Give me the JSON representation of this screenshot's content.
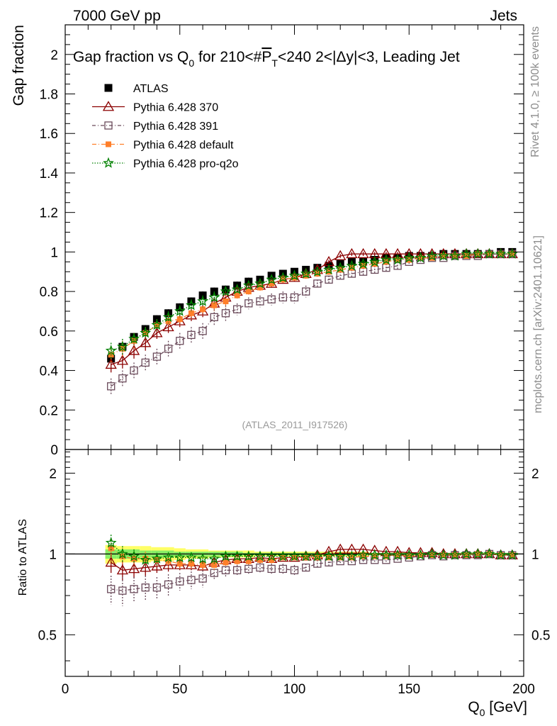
{
  "header": {
    "left": "7000 GeV pp",
    "right": "Jets"
  },
  "side": {
    "top": "Rivet 4.1.0, ≥ 100k events",
    "bottom": "mcplots.cern.ch [arXiv:2401.10621]"
  },
  "watermark": "(ATLAS_2011_I917526)",
  "colors": {
    "data": "#000000",
    "p370": "#8b0000",
    "p391": "#6a4a5a",
    "pdefault": "#ff7f2a",
    "pq2o": "#008000",
    "band_outer": "#ffff66",
    "band_inner": "#88ee66"
  },
  "chart_data": [
    {
      "type": "scatter",
      "title": "Gap fraction vs Q0 for 210<#PT<240  2<|Δy|<3, Leading Jet",
      "title_parts": {
        "a": "Gap fraction vs Q",
        "sub0": "0",
        "b": " for 210<#",
        "p": "P",
        "t": "T",
        "c": "<240  2<|Δy|<3, Leading Jet"
      },
      "ylabel": "Gap fraction",
      "xlabel": "",
      "xlim": [
        0,
        200
      ],
      "ylim": [
        0,
        2.15
      ],
      "yticks": [
        0,
        0.2,
        0.4,
        0.6,
        0.8,
        1,
        1.2,
        1.4,
        1.6,
        1.8,
        2
      ],
      "ytick_labels": [
        "0",
        "0.2",
        "0.4",
        "0.6",
        "0.8",
        "1",
        "1.2",
        "1.4",
        "1.6",
        "1.8",
        "2"
      ],
      "x": [
        20,
        25,
        30,
        35,
        40,
        45,
        50,
        55,
        60,
        65,
        70,
        75,
        80,
        85,
        90,
        95,
        100,
        105,
        110,
        115,
        120,
        125,
        130,
        135,
        140,
        145,
        150,
        155,
        160,
        165,
        170,
        175,
        180,
        185,
        190,
        195
      ],
      "series": [
        {
          "name": "ATLAS",
          "key": "data",
          "values": [
            0.46,
            0.52,
            0.57,
            0.61,
            0.66,
            0.69,
            0.72,
            0.75,
            0.78,
            0.8,
            0.81,
            0.83,
            0.85,
            0.86,
            0.88,
            0.89,
            0.9,
            0.91,
            0.92,
            0.93,
            0.94,
            0.95,
            0.95,
            0.96,
            0.97,
            0.97,
            0.98,
            0.98,
            0.98,
            0.99,
            0.99,
            0.99,
            0.99,
            0.99,
            1.0,
            1.0
          ],
          "errors": [
            0.02,
            0.02,
            0.02,
            0.02,
            0.02,
            0.02,
            0.02,
            0.02,
            0.02,
            0.02,
            0.02,
            0.02,
            0.02,
            0.01,
            0.01,
            0.01,
            0.01,
            0.01,
            0.01,
            0.01,
            0.01,
            0.01,
            0.01,
            0.01,
            0.01,
            0.01,
            0.01,
            0.01,
            0.01,
            0.01,
            0.01,
            0.01,
            0.01,
            0.01,
            0.01,
            0.01
          ]
        },
        {
          "name": "Pythia 6.428 370",
          "key": "p370",
          "values": [
            0.43,
            0.45,
            0.5,
            0.54,
            0.59,
            0.62,
            0.65,
            0.68,
            0.7,
            0.74,
            0.77,
            0.8,
            0.82,
            0.83,
            0.84,
            0.86,
            0.87,
            0.89,
            0.91,
            0.95,
            0.98,
            0.99,
            0.99,
            0.99,
            0.99,
            0.99,
            0.99,
            0.99,
            0.99,
            0.99,
            0.99,
            0.99,
            0.99,
            0.99,
            0.99,
            0.99
          ],
          "errors": [
            0.04,
            0.04,
            0.04,
            0.04,
            0.03,
            0.03,
            0.03,
            0.03,
            0.03,
            0.03,
            0.03,
            0.03,
            0.02,
            0.02,
            0.02,
            0.02,
            0.02,
            0.02,
            0.02,
            0.01,
            0.01,
            0.01,
            0.01,
            0.01,
            0.01,
            0.01,
            0.01,
            0.01,
            0.01,
            0.01,
            0.01,
            0.01,
            0.01,
            0.01,
            0.01,
            0.01
          ]
        },
        {
          "name": "Pythia 6.428 391",
          "key": "p391",
          "values": [
            0.32,
            0.36,
            0.4,
            0.44,
            0.47,
            0.51,
            0.55,
            0.58,
            0.6,
            0.67,
            0.69,
            0.71,
            0.74,
            0.75,
            0.76,
            0.77,
            0.77,
            0.8,
            0.84,
            0.86,
            0.88,
            0.89,
            0.9,
            0.91,
            0.92,
            0.93,
            0.95,
            0.96,
            0.97,
            0.97,
            0.98,
            0.98,
            0.98,
            0.99,
            0.99,
            0.99
          ],
          "errors": [
            0.04,
            0.04,
            0.04,
            0.04,
            0.04,
            0.04,
            0.04,
            0.04,
            0.04,
            0.04,
            0.04,
            0.03,
            0.03,
            0.03,
            0.03,
            0.03,
            0.03,
            0.03,
            0.02,
            0.02,
            0.02,
            0.02,
            0.02,
            0.02,
            0.02,
            0.02,
            0.01,
            0.01,
            0.01,
            0.01,
            0.01,
            0.01,
            0.01,
            0.01,
            0.01,
            0.01
          ]
        },
        {
          "name": "Pythia 6.428 default",
          "key": "pdefault",
          "values": [
            0.48,
            0.51,
            0.55,
            0.59,
            0.63,
            0.65,
            0.66,
            0.69,
            0.71,
            0.73,
            0.75,
            0.78,
            0.8,
            0.82,
            0.84,
            0.86,
            0.87,
            0.88,
            0.89,
            0.9,
            0.91,
            0.92,
            0.93,
            0.94,
            0.95,
            0.96,
            0.96,
            0.97,
            0.97,
            0.98,
            0.98,
            0.98,
            0.99,
            0.99,
            0.99,
            0.99
          ],
          "errors": [
            0.04,
            0.04,
            0.04,
            0.03,
            0.03,
            0.03,
            0.03,
            0.03,
            0.03,
            0.03,
            0.03,
            0.02,
            0.02,
            0.02,
            0.02,
            0.02,
            0.02,
            0.02,
            0.02,
            0.02,
            0.01,
            0.01,
            0.01,
            0.01,
            0.01,
            0.01,
            0.01,
            0.01,
            0.01,
            0.01,
            0.01,
            0.01,
            0.01,
            0.01,
            0.01,
            0.01
          ]
        },
        {
          "name": "Pythia 6.428 pro-q2o",
          "key": "pq2o",
          "values": [
            0.5,
            0.52,
            0.56,
            0.59,
            0.63,
            0.67,
            0.7,
            0.73,
            0.75,
            0.77,
            0.8,
            0.81,
            0.83,
            0.84,
            0.86,
            0.87,
            0.88,
            0.89,
            0.9,
            0.91,
            0.92,
            0.93,
            0.94,
            0.95,
            0.96,
            0.96,
            0.97,
            0.97,
            0.98,
            0.98,
            0.98,
            0.99,
            0.99,
            0.99,
            0.99,
            0.99
          ],
          "errors": [
            0.04,
            0.04,
            0.03,
            0.03,
            0.03,
            0.03,
            0.03,
            0.03,
            0.03,
            0.03,
            0.02,
            0.02,
            0.02,
            0.02,
            0.02,
            0.02,
            0.02,
            0.02,
            0.02,
            0.02,
            0.01,
            0.01,
            0.01,
            0.01,
            0.01,
            0.01,
            0.01,
            0.01,
            0.01,
            0.01,
            0.01,
            0.01,
            0.01,
            0.01,
            0.01,
            0.01
          ]
        }
      ]
    },
    {
      "type": "scatter",
      "title": "",
      "ylabel": "Ratio to ATLAS",
      "xlabel": "Q0 [GeV]",
      "xlabel_parts": {
        "q": "Q",
        "sub0": "0",
        "unit": " [GeV]"
      },
      "xlim": [
        0,
        200
      ],
      "ylim": [
        0.35,
        2.45
      ],
      "yscale": "log",
      "xticks": [
        0,
        50,
        100,
        150,
        200
      ],
      "xtick_labels": [
        "0",
        "50",
        "100",
        "150",
        "200"
      ],
      "yticks": [
        0.5,
        1,
        2
      ],
      "ytick_labels": [
        "0.5",
        "1",
        "2"
      ],
      "x": [
        20,
        25,
        30,
        35,
        40,
        45,
        50,
        55,
        60,
        65,
        70,
        75,
        80,
        85,
        90,
        95,
        100,
        105,
        110,
        115,
        120,
        125,
        130,
        135,
        140,
        145,
        150,
        155,
        160,
        165,
        170,
        175,
        180,
        185,
        190,
        195
      ],
      "band": {
        "outer": [
          0.08,
          0.07,
          0.07,
          0.07,
          0.06,
          0.06,
          0.05,
          0.04,
          0.04,
          0.03,
          0.03,
          0.03,
          0.03,
          0.02,
          0.02,
          0.02,
          0.02,
          0.02,
          0.02,
          0.02,
          0.02,
          0.02,
          0.02,
          0.01,
          0.01,
          0.01,
          0.01,
          0.01,
          0.01,
          0.01,
          0.01,
          0.01,
          0.01,
          0.01,
          0.01,
          0.01
        ],
        "inner": [
          0.04,
          0.04,
          0.04,
          0.03,
          0.03,
          0.03,
          0.02,
          0.02,
          0.02,
          0.02,
          0.02,
          0.02,
          0.01,
          0.01,
          0.01,
          0.01,
          0.01,
          0.01,
          0.01,
          0.01,
          0.01,
          0.01,
          0.01,
          0.01,
          0.01,
          0.01,
          0.01,
          0.01,
          0.01,
          0.01,
          0.01,
          0.01,
          0.01,
          0.01,
          0.01,
          0.01
        ]
      },
      "series": [
        {
          "name": "Pythia 6.428 370",
          "key": "p370",
          "values": [
            0.93,
            0.87,
            0.88,
            0.89,
            0.9,
            0.91,
            0.91,
            0.91,
            0.9,
            0.93,
            0.95,
            0.96,
            0.96,
            0.97,
            0.96,
            0.97,
            0.97,
            0.98,
            0.99,
            1.02,
            1.04,
            1.04,
            1.04,
            1.03,
            1.02,
            1.02,
            1.01,
            1.01,
            1.01,
            1.0,
            1.0,
            1.0,
            1.0,
            1.0,
            0.99,
            0.99
          ],
          "errors": [
            0.08,
            0.07,
            0.07,
            0.06,
            0.05,
            0.05,
            0.04,
            0.04,
            0.04,
            0.04,
            0.04,
            0.03,
            0.03,
            0.03,
            0.03,
            0.02,
            0.02,
            0.02,
            0.02,
            0.02,
            0.02,
            0.01,
            0.01,
            0.01,
            0.01,
            0.01,
            0.01,
            0.01,
            0.01,
            0.01,
            0.01,
            0.01,
            0.01,
            0.01,
            0.01,
            0.01
          ]
        },
        {
          "name": "Pythia 6.428 391",
          "key": "p391",
          "values": [
            0.74,
            0.73,
            0.74,
            0.75,
            0.75,
            0.77,
            0.79,
            0.8,
            0.81,
            0.85,
            0.87,
            0.87,
            0.88,
            0.89,
            0.88,
            0.88,
            0.87,
            0.89,
            0.92,
            0.93,
            0.94,
            0.94,
            0.95,
            0.95,
            0.95,
            0.96,
            0.97,
            0.98,
            0.99,
            0.98,
            0.99,
            0.99,
            0.99,
            1.0,
            0.99,
            0.99
          ],
          "errors": [
            0.09,
            0.09,
            0.08,
            0.08,
            0.07,
            0.07,
            0.06,
            0.06,
            0.06,
            0.05,
            0.05,
            0.04,
            0.04,
            0.04,
            0.04,
            0.04,
            0.04,
            0.03,
            0.03,
            0.03,
            0.02,
            0.02,
            0.02,
            0.02,
            0.02,
            0.02,
            0.01,
            0.01,
            0.01,
            0.01,
            0.01,
            0.01,
            0.01,
            0.01,
            0.01,
            0.01
          ]
        },
        {
          "name": "Pythia 6.428 default",
          "key": "pdefault",
          "values": [
            1.05,
            0.98,
            0.96,
            0.96,
            0.95,
            0.94,
            0.92,
            0.92,
            0.91,
            0.91,
            0.93,
            0.94,
            0.94,
            0.95,
            0.95,
            0.97,
            0.97,
            0.97,
            0.97,
            0.97,
            0.97,
            0.97,
            0.98,
            0.98,
            0.98,
            0.99,
            0.98,
            0.99,
            0.99,
            0.99,
            0.99,
            0.99,
            1.0,
            1.0,
            0.99,
            0.99
          ],
          "errors": [
            0.08,
            0.07,
            0.06,
            0.06,
            0.05,
            0.05,
            0.04,
            0.04,
            0.04,
            0.04,
            0.03,
            0.03,
            0.03,
            0.03,
            0.03,
            0.02,
            0.02,
            0.02,
            0.02,
            0.02,
            0.02,
            0.01,
            0.01,
            0.01,
            0.01,
            0.01,
            0.01,
            0.01,
            0.01,
            0.01,
            0.01,
            0.01,
            0.01,
            0.01,
            0.01,
            0.01
          ]
        },
        {
          "name": "Pythia 6.428 pro-q2o",
          "key": "pq2o",
          "values": [
            1.1,
            1.0,
            0.98,
            0.95,
            0.96,
            0.97,
            0.97,
            0.97,
            0.96,
            0.96,
            0.98,
            0.98,
            0.98,
            0.98,
            0.98,
            0.98,
            0.98,
            0.98,
            0.98,
            0.98,
            0.98,
            0.98,
            0.99,
            0.99,
            0.99,
            0.99,
            0.99,
            0.99,
            1.0,
            0.99,
            0.99,
            1.0,
            1.0,
            1.0,
            0.99,
            0.99
          ],
          "errors": [
            0.08,
            0.07,
            0.06,
            0.05,
            0.05,
            0.04,
            0.04,
            0.04,
            0.04,
            0.04,
            0.03,
            0.03,
            0.03,
            0.02,
            0.02,
            0.02,
            0.02,
            0.02,
            0.02,
            0.02,
            0.02,
            0.01,
            0.01,
            0.01,
            0.01,
            0.01,
            0.01,
            0.01,
            0.01,
            0.01,
            0.01,
            0.01,
            0.01,
            0.01,
            0.01,
            0.01
          ]
        }
      ]
    }
  ]
}
